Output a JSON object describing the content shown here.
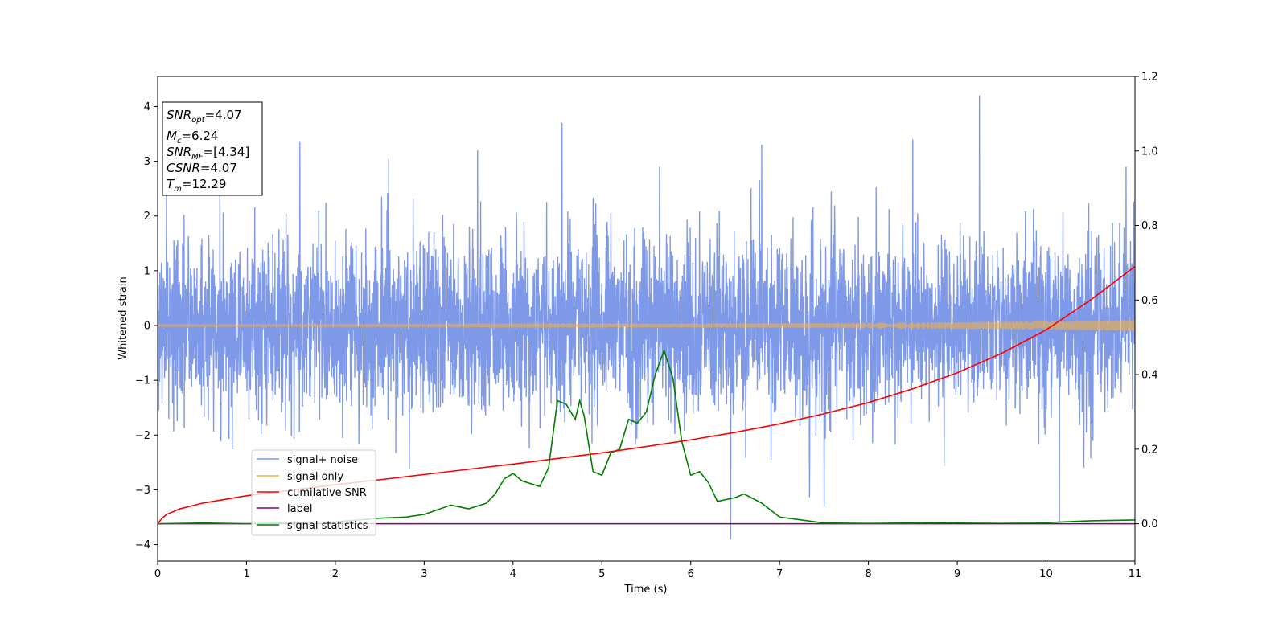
{
  "chart_data": {
    "type": "line",
    "xlabel": "Time (s)",
    "ylabel": "Whitened strain",
    "xlim": [
      0,
      11
    ],
    "ylim": [
      -4.3,
      4.55
    ],
    "y2lim": [
      -0.1,
      1.2
    ],
    "x_ticks": [
      0,
      1,
      2,
      3,
      4,
      5,
      6,
      7,
      8,
      9,
      10,
      11
    ],
    "y_ticks": [
      -4,
      -3,
      -2,
      -1,
      0,
      1,
      2,
      3,
      4
    ],
    "y2_ticks": [
      "0.0",
      "0.2",
      "0.4",
      "0.6",
      "0.8",
      "1.0",
      "1.2"
    ],
    "grid": false,
    "legend_position": "lower-left",
    "stats_box": {
      "snr_opt": {
        "sym": "SNR",
        "sub": "opt",
        "value": "=4.07"
      },
      "m_c": {
        "sym": "M",
        "sub": "c",
        "value": "=6.24"
      },
      "snr_mf": {
        "sym": "SNR",
        "sub": "MF",
        "value": "=[4.34]"
      },
      "csnr": {
        "sym": "CSNR",
        "sub": "",
        "value": "=4.07"
      },
      "t_m": {
        "sym": "T",
        "sub": "m",
        "value": "=12.29"
      }
    },
    "series": [
      {
        "name": "signal+ noise",
        "axis": "left",
        "color": "#7893e8",
        "noise_sigma": 0.8,
        "peaks": [
          [
            0.1,
            2.6
          ],
          [
            1.6,
            3.35
          ],
          [
            2.6,
            3.05
          ],
          [
            3.6,
            3.2
          ],
          [
            4.55,
            3.7
          ],
          [
            5.65,
            2.9
          ],
          [
            6.45,
            -3.9
          ],
          [
            6.8,
            3.3
          ],
          [
            8.5,
            3.4
          ],
          [
            9.25,
            4.2
          ],
          [
            10.15,
            -3.6
          ],
          [
            10.9,
            2.9
          ]
        ]
      },
      {
        "name": "signal only",
        "axis": "left",
        "color": "#f5b041",
        "start_amp": 0.02,
        "end_amp": 0.1
      },
      {
        "name": "cumilative SNR",
        "axis": "right",
        "color": "#ff0000",
        "x": [
          0,
          0.05,
          0.1,
          0.25,
          0.5,
          0.75,
          1,
          1.5,
          2,
          2.5,
          3,
          3.5,
          4,
          4.5,
          5,
          5.5,
          6,
          6.5,
          7,
          7.5,
          8,
          8.5,
          9,
          9.5,
          10,
          10.5,
          11
        ],
        "values": [
          0,
          0.015,
          0.025,
          0.04,
          0.055,
          0.065,
          0.075,
          0.09,
          0.105,
          0.118,
          0.132,
          0.146,
          0.16,
          0.175,
          0.19,
          0.207,
          0.225,
          0.245,
          0.268,
          0.295,
          0.325,
          0.362,
          0.405,
          0.457,
          0.52,
          0.6,
          0.69
        ]
      },
      {
        "name": "label",
        "axis": "right",
        "color": "#800080",
        "x": [
          0,
          11
        ],
        "values": [
          0,
          0
        ]
      },
      {
        "name": "signal statistics",
        "axis": "right",
        "color": "#008000",
        "x": [
          0,
          0.5,
          1,
          1.5,
          2,
          2.5,
          2.8,
          3,
          3.3,
          3.5,
          3.7,
          3.8,
          3.9,
          4,
          4.1,
          4.3,
          4.4,
          4.5,
          4.6,
          4.7,
          4.75,
          4.8,
          4.9,
          5,
          5.1,
          5.2,
          5.3,
          5.4,
          5.5,
          5.6,
          5.7,
          5.8,
          5.9,
          6,
          6.1,
          6.2,
          6.3,
          6.5,
          6.6,
          6.8,
          7,
          7.5,
          8,
          8.5,
          9,
          9.5,
          10,
          10.5,
          11
        ],
        "values": [
          0,
          0.002,
          0,
          0.003,
          0.005,
          0.015,
          0.018,
          0.025,
          0.05,
          0.04,
          0.055,
          0.08,
          0.12,
          0.135,
          0.115,
          0.1,
          0.15,
          0.33,
          0.32,
          0.28,
          0.33,
          0.29,
          0.14,
          0.13,
          0.19,
          0.2,
          0.28,
          0.27,
          0.3,
          0.4,
          0.465,
          0.39,
          0.22,
          0.13,
          0.14,
          0.11,
          0.06,
          0.07,
          0.08,
          0.055,
          0.018,
          0.002,
          0.001,
          0.002,
          0.003,
          0.004,
          0.003,
          0.008,
          0.01
        ]
      }
    ]
  }
}
